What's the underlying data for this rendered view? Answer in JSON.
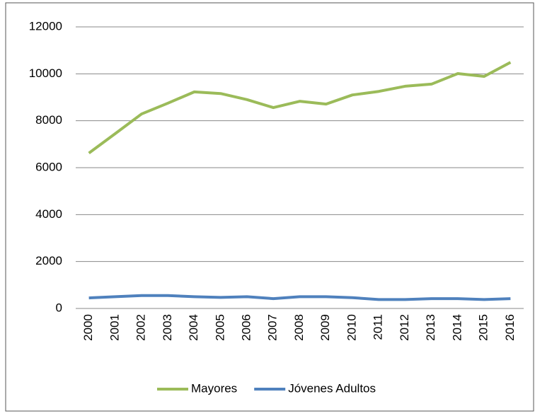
{
  "chart_data": {
    "type": "line",
    "categories": [
      "2000",
      "2001",
      "2002",
      "2003",
      "2004",
      "2005",
      "2006",
      "2007",
      "2008",
      "2009",
      "2010",
      "2011",
      "2012",
      "2013",
      "2014",
      "2015",
      "2016"
    ],
    "series": [
      {
        "name": "Mayores",
        "color": "#9bbb59",
        "values": [
          6620,
          7450,
          8290,
          8750,
          9230,
          9160,
          8900,
          8560,
          8830,
          8710,
          9100,
          9250,
          9470,
          9560,
          10010,
          9890,
          10490
        ]
      },
      {
        "name": "Jóvenes Adultos",
        "color": "#4f81bd",
        "values": [
          450,
          500,
          550,
          550,
          500,
          470,
          500,
          420,
          500,
          500,
          460,
          380,
          380,
          420,
          420,
          380,
          420
        ]
      }
    ],
    "ylim": [
      0,
      12000
    ],
    "yticks": [
      0,
      2000,
      4000,
      6000,
      8000,
      10000,
      12000
    ],
    "grid": true,
    "legend": "bottom"
  }
}
